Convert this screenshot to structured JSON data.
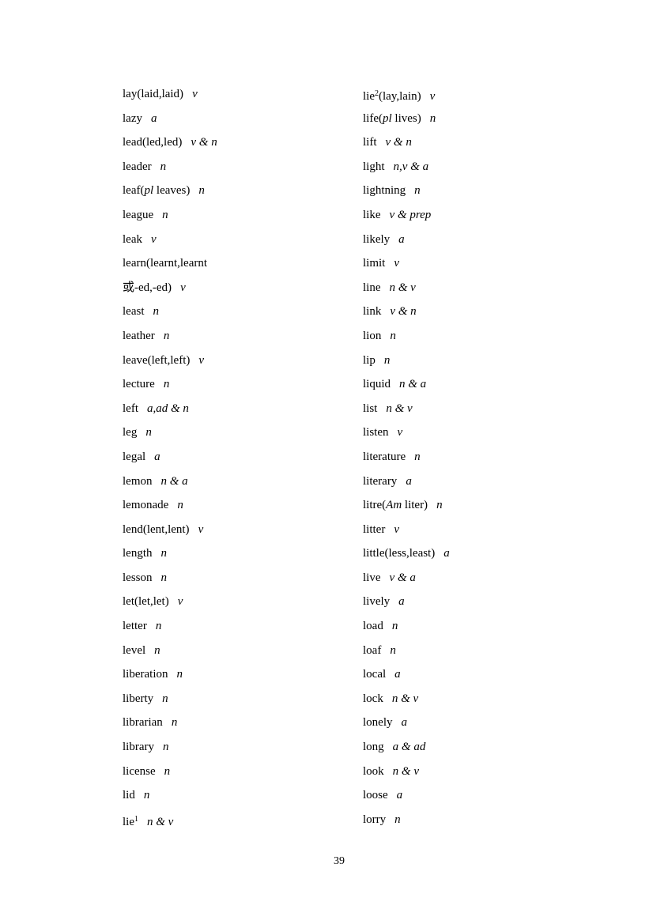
{
  "page": {
    "number": "39"
  },
  "word_list": {
    "left_column": [
      [
        [
          "lay(laid,laid)",
          "r"
        ],
        [
          "v",
          "p"
        ]
      ],
      [
        [
          "lazy",
          "r"
        ],
        [
          "a",
          "p"
        ]
      ],
      [
        [
          "lead(led,led)",
          "r"
        ],
        [
          "v & n",
          "p"
        ]
      ],
      [
        [
          "leader",
          "r"
        ],
        [
          "n",
          "p"
        ]
      ],
      [
        [
          "leaf(",
          "r"
        ],
        [
          "pl",
          "i"
        ],
        [
          " leaves)",
          "r"
        ],
        [
          "n",
          "p"
        ]
      ],
      [
        [
          "league",
          "r"
        ],
        [
          "n",
          "p"
        ]
      ],
      [
        [
          "leak",
          "r"
        ],
        [
          "v",
          "p"
        ]
      ],
      [
        [
          "learn(learnt,learnt",
          "r"
        ]
      ],
      [
        [
          "或-ed,-ed)",
          "r"
        ],
        [
          "v",
          "p"
        ]
      ],
      [
        [
          "least",
          "r"
        ],
        [
          "n",
          "p"
        ]
      ],
      [
        [
          "leather",
          "r"
        ],
        [
          "n",
          "p"
        ]
      ],
      [
        [
          "leave(left,left)",
          "r"
        ],
        [
          "v",
          "p"
        ]
      ],
      [
        [
          "lecture",
          "r"
        ],
        [
          "n",
          "p"
        ]
      ],
      [
        [
          "left",
          "r"
        ],
        [
          "a,ad & n",
          "p"
        ]
      ],
      [
        [
          "leg",
          "r"
        ],
        [
          "n",
          "p"
        ]
      ],
      [
        [
          "legal",
          "r"
        ],
        [
          "a",
          "p"
        ]
      ],
      [
        [
          "lemon",
          "r"
        ],
        [
          "n & a",
          "p"
        ]
      ],
      [
        [
          "lemonade",
          "r"
        ],
        [
          "n",
          "p"
        ]
      ],
      [
        [
          "lend(lent,lent)",
          "r"
        ],
        [
          "v",
          "p"
        ]
      ],
      [
        [
          "length",
          "r"
        ],
        [
          "n",
          "p"
        ]
      ],
      [
        [
          "lesson",
          "r"
        ],
        [
          "n",
          "p"
        ]
      ],
      [
        [
          "let(let,let)",
          "r"
        ],
        [
          "v",
          "p"
        ]
      ],
      [
        [
          "letter",
          "r"
        ],
        [
          "n",
          "p"
        ]
      ],
      [
        [
          "level",
          "r"
        ],
        [
          "n",
          "p"
        ]
      ],
      [
        [
          "liberation",
          "r"
        ],
        [
          "n",
          "p"
        ]
      ],
      [
        [
          "liberty",
          "r"
        ],
        [
          "n",
          "p"
        ]
      ],
      [
        [
          "librarian",
          "r"
        ],
        [
          "n",
          "p"
        ]
      ],
      [
        [
          "library",
          "r"
        ],
        [
          "n",
          "p"
        ]
      ],
      [
        [
          "license",
          "r"
        ],
        [
          "n",
          "p"
        ]
      ],
      [
        [
          "lid",
          "r"
        ],
        [
          "n",
          "p"
        ]
      ],
      [
        [
          "lie",
          "r"
        ],
        [
          "1",
          "s"
        ],
        [
          "n & v",
          "p"
        ]
      ]
    ],
    "right_column": [
      [
        [
          "lie",
          "r"
        ],
        [
          "2",
          "s"
        ],
        [
          "(lay,lain)",
          "r"
        ],
        [
          "v",
          "p"
        ]
      ],
      [
        [
          "life(",
          "r"
        ],
        [
          "pl",
          "i"
        ],
        [
          " lives)",
          "r"
        ],
        [
          "n",
          "p"
        ]
      ],
      [
        [
          "lift",
          "r"
        ],
        [
          "v & n",
          "p"
        ]
      ],
      [
        [
          "light",
          "r"
        ],
        [
          "n,v & a",
          "p"
        ]
      ],
      [
        [
          "lightning",
          "r"
        ],
        [
          "n",
          "p"
        ]
      ],
      [
        [
          "like",
          "r"
        ],
        [
          "v & prep",
          "p"
        ]
      ],
      [
        [
          "likely",
          "r"
        ],
        [
          "a",
          "p"
        ]
      ],
      [
        [
          "limit",
          "r"
        ],
        [
          "v",
          "p"
        ]
      ],
      [
        [
          "line",
          "r"
        ],
        [
          "n & v",
          "p"
        ]
      ],
      [
        [
          "link",
          "r"
        ],
        [
          "v & n",
          "p"
        ]
      ],
      [
        [
          "lion",
          "r"
        ],
        [
          "n",
          "p"
        ]
      ],
      [
        [
          "lip",
          "r"
        ],
        [
          "n",
          "p"
        ]
      ],
      [
        [
          "liquid",
          "r"
        ],
        [
          "n & a",
          "p"
        ]
      ],
      [
        [
          "list",
          "r"
        ],
        [
          "n & v",
          "p"
        ]
      ],
      [
        [
          "listen",
          "r"
        ],
        [
          "v",
          "p"
        ]
      ],
      [
        [
          "literature",
          "r"
        ],
        [
          "n",
          "p"
        ]
      ],
      [
        [
          "literary",
          "r"
        ],
        [
          "a",
          "p"
        ]
      ],
      [
        [
          "litre(",
          "r"
        ],
        [
          "Am",
          "i"
        ],
        [
          " liter)",
          "r"
        ],
        [
          "n",
          "p"
        ]
      ],
      [
        [
          "litter",
          "r"
        ],
        [
          "v",
          "p"
        ]
      ],
      [
        [
          "little(less,least)",
          "r"
        ],
        [
          "a",
          "p"
        ]
      ],
      [
        [
          "live",
          "r"
        ],
        [
          "v & a",
          "p"
        ]
      ],
      [
        [
          "lively",
          "r"
        ],
        [
          "a",
          "p"
        ]
      ],
      [
        [
          "load",
          "r"
        ],
        [
          "n",
          "p"
        ]
      ],
      [
        [
          "loaf",
          "r"
        ],
        [
          "n",
          "p"
        ]
      ],
      [
        [
          "local",
          "r"
        ],
        [
          "a",
          "p"
        ]
      ],
      [
        [
          "lock",
          "r"
        ],
        [
          "n & v",
          "p"
        ]
      ],
      [
        [
          "lonely",
          "r"
        ],
        [
          "a",
          "p"
        ]
      ],
      [
        [
          "long",
          "r"
        ],
        [
          "a & ad",
          "p"
        ]
      ],
      [
        [
          "look",
          "r"
        ],
        [
          "n & v",
          "p"
        ]
      ],
      [
        [
          "loose",
          "r"
        ],
        [
          "a",
          "p"
        ]
      ],
      [
        [
          "lorry",
          "r"
        ],
        [
          "n",
          "p"
        ]
      ]
    ]
  }
}
